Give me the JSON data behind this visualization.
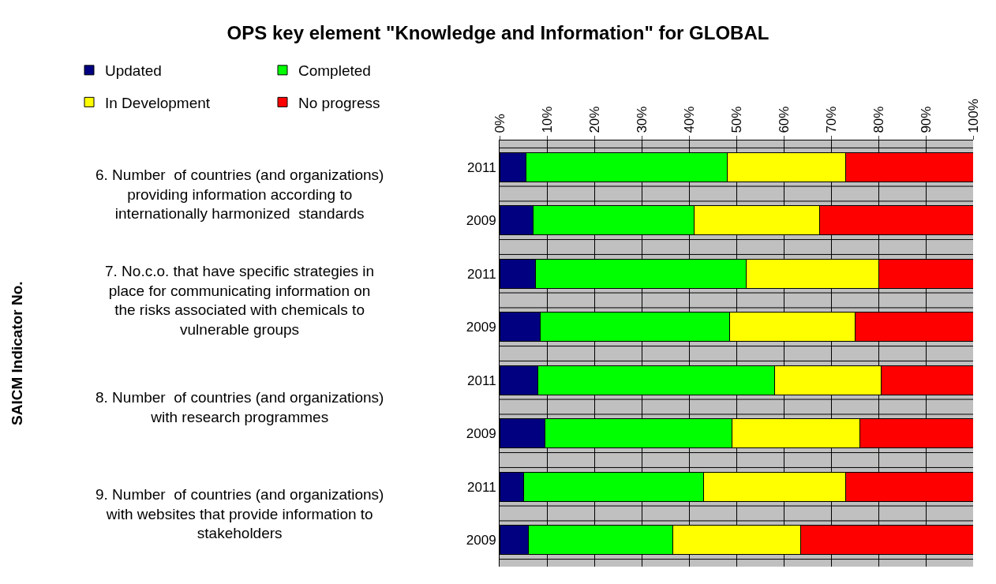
{
  "chart_data": {
    "type": "bar",
    "orientation": "horizontal",
    "stacked": true,
    "title": "OPS key element \"Knowledge and Information\" for GLOBAL",
    "categories": [
      "2011",
      "2009",
      "2011",
      "2009",
      "2011",
      "2009",
      "2011",
      "2009"
    ],
    "series": [
      {
        "name": "Updated",
        "color": "#000080",
        "values": [
          5.5,
          7,
          7.5,
          8.5,
          8,
          9.5,
          5,
          6
        ]
      },
      {
        "name": "Completed",
        "color": "#00ff00",
        "values": [
          42.5,
          34,
          44.5,
          40,
          50,
          39.5,
          38,
          30.5
        ]
      },
      {
        "name": "In Development",
        "color": "#ffff00",
        "values": [
          25,
          26.5,
          28,
          26.5,
          22.5,
          27,
          30,
          27
        ]
      },
      {
        "name": "No progress",
        "color": "#ff0000",
        "values": [
          27,
          32.5,
          20,
          25,
          19.5,
          24,
          27,
          36.5
        ]
      }
    ],
    "annotations": [
      "SAICM Indicator No.",
      "6. Number  of countries (and organizations)\nproviding information according to\ninternationally harmonized  standards",
      "7. No.c.o. that have specific strategies in\nplace for communicating information on\nthe risks associated with chemicals to\nvulnerable groups",
      "8. Number  of countries (and organizations)\nwith research programmes",
      "9. Number  of countries (and organizations)\nwith websites that provide information to\nstakeholders"
    ],
    "xlim": [
      0,
      100
    ],
    "xticks": [
      {
        "value": 0,
        "label": "0%"
      },
      {
        "value": 10,
        "label": "10%"
      },
      {
        "value": 20,
        "label": "20%"
      },
      {
        "value": 30,
        "label": "30%"
      },
      {
        "value": 40,
        "label": "40%"
      },
      {
        "value": 50,
        "label": "50%"
      },
      {
        "value": 60,
        "label": "60%"
      },
      {
        "value": 70,
        "label": "70%"
      },
      {
        "value": 80,
        "label": "80%"
      },
      {
        "value": 90,
        "label": "90%"
      },
      {
        "value": 100,
        "label": "100%"
      }
    ],
    "grid": "x",
    "legend": "top left"
  }
}
